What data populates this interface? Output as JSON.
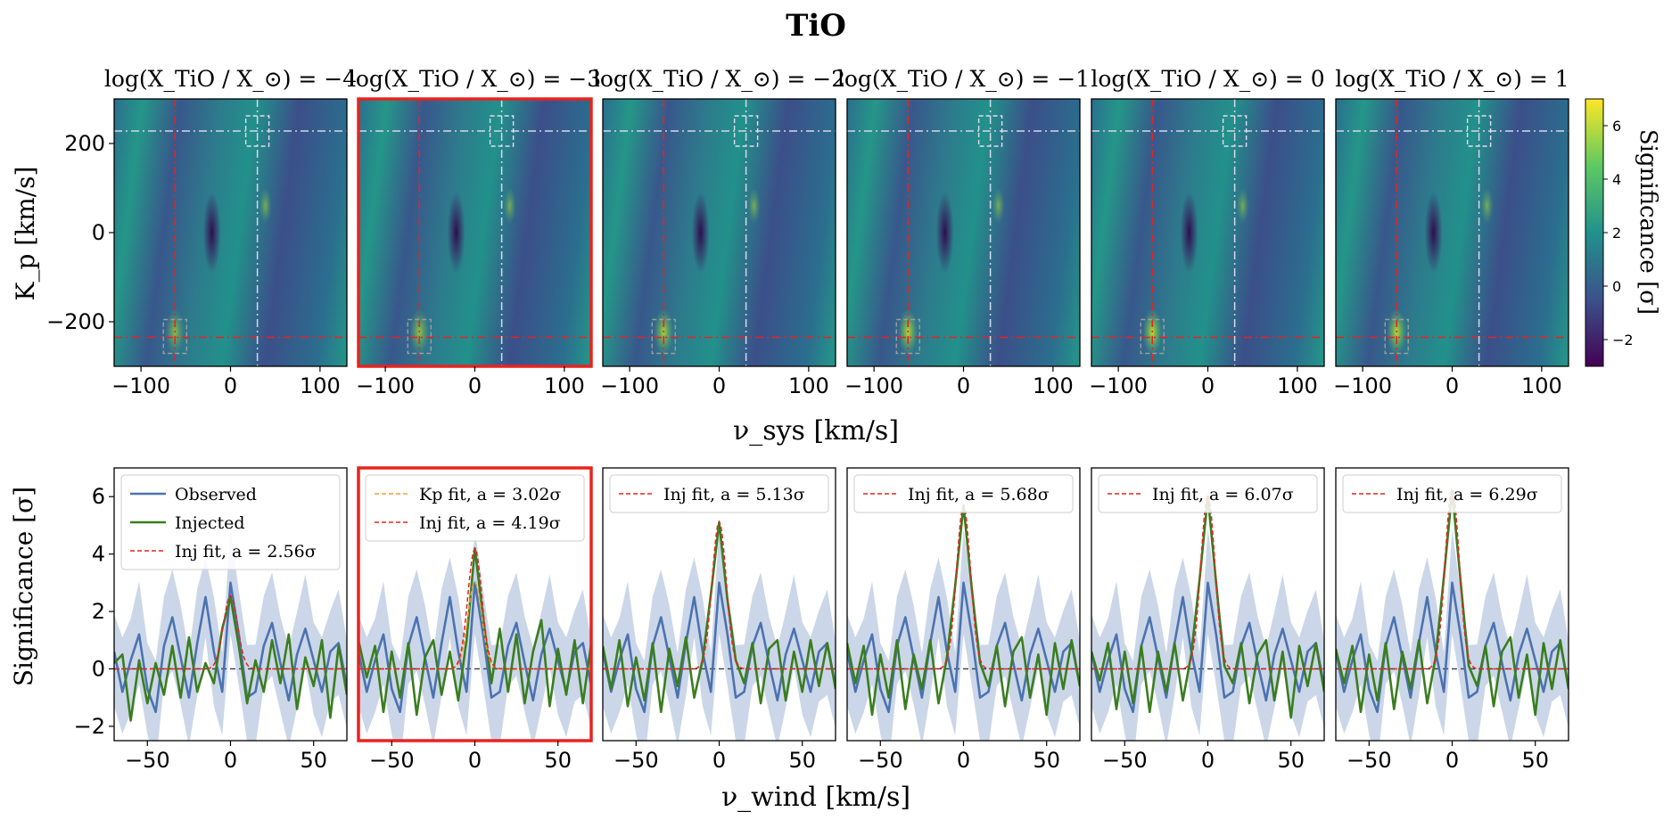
{
  "figure": {
    "title": "TiO",
    "top_ylabel": "K_p [km/s]",
    "top_xlabel": "ν_sys [km/s]",
    "bottom_ylabel": "Significance [σ]",
    "bottom_xlabel": "ν_wind [km/s]",
    "colorbar_label": "Significance [σ]",
    "colorbar_ticks": [
      "−2",
      "0",
      "2",
      "4",
      "6"
    ],
    "colormap": [
      "#440154",
      "#3b528b",
      "#21918c",
      "#5ec962",
      "#fde725"
    ],
    "highlight_color": "#e8231f",
    "highlight_panel_index": 1,
    "panel_titles": [
      "log(X_TiO / X_⊙) = −4",
      "log(X_TiO / X_⊙) = −3",
      "log(X_TiO / X_⊙) = −2",
      "log(X_TiO / X_⊙) = −1",
      "log(X_TiO / X_⊙) = 0",
      "log(X_TiO / X_⊙) = 1"
    ]
  },
  "chart_data": [
    {
      "type": "heatmap",
      "panel": "top-row",
      "xlim": [
        -130,
        130
      ],
      "ylim": [
        -300,
        300
      ],
      "xticks": [
        -100,
        0,
        100
      ],
      "yticks": [
        -200,
        0,
        200
      ],
      "color_range": [
        -3,
        7
      ],
      "red_crosshair": {
        "x": -62,
        "y": -235
      },
      "white_crosshair": {
        "x": 30,
        "y": 228
      },
      "peak_significance_at_red_crosshair": [
        2.8,
        3.6,
        4.8,
        5.6,
        6.0,
        6.3
      ]
    },
    {
      "type": "line",
      "panel": "bottom-row",
      "xlim": [
        -70,
        70
      ],
      "ylim": [
        -2.5,
        7
      ],
      "xticks": [
        -50,
        0,
        50
      ],
      "yticks": [
        -2,
        0,
        2,
        4,
        6
      ],
      "series_colors": {
        "observed": "#4c72b0",
        "injected": "#3a7d1f",
        "inj_fit": "#e8231f",
        "kp_fit": "#f0a030",
        "band": "#c5d3e6"
      },
      "legend_labels": {
        "observed": "Observed",
        "injected": "Injected"
      },
      "observed": {
        "x": [
          -70,
          -65,
          -60,
          -55,
          -50,
          -45,
          -40,
          -35,
          -30,
          -25,
          -20,
          -15,
          -10,
          -5,
          0,
          5,
          10,
          15,
          20,
          25,
          30,
          35,
          40,
          45,
          50,
          55,
          60,
          65,
          70
        ],
        "y": [
          0.6,
          -0.8,
          0.3,
          1.2,
          -0.7,
          -1.5,
          0.8,
          1.8,
          0.4,
          -1.0,
          0.9,
          2.5,
          0.6,
          -0.8,
          3.0,
          1.2,
          -1.0,
          -0.8,
          0.8,
          1.6,
          0.2,
          -1.1,
          0.5,
          1.4,
          0.3,
          -0.8,
          0.6,
          0.9,
          -0.6
        ]
      },
      "panels": [
        {
          "legend": [
            "Observed",
            "Injected",
            "Inj fit, a = 2.56σ"
          ],
          "amplitude": 2.56,
          "injected": {
            "x": [
              -70,
              -65,
              -60,
              -55,
              -50,
              -45,
              -40,
              -35,
              -30,
              -25,
              -20,
              -15,
              -10,
              -5,
              0,
              5,
              10,
              15,
              20,
              25,
              30,
              35,
              40,
              45,
              50,
              55,
              60,
              65,
              70
            ],
            "y": [
              0.2,
              0.5,
              -1.8,
              0.3,
              -1.2,
              0.2,
              -0.9,
              0.8,
              -1.0,
              1.1,
              -0.8,
              0.2,
              -0.5,
              1.4,
              2.5,
              0.8,
              -1.2,
              0.3,
              -0.8,
              1.0,
              -0.5,
              1.2,
              -1.4,
              0.4,
              -0.6,
              1.0,
              -1.7,
              0.8,
              -0.9
            ]
          }
        },
        {
          "legend": [
            "Kp fit, a = 3.02σ",
            "Inj fit, a = 4.19σ"
          ],
          "amplitude": 4.19,
          "kp_fit_amplitude": 3.02,
          "injected": {
            "x": [
              -70,
              -65,
              -60,
              -55,
              -50,
              -45,
              -40,
              -35,
              -30,
              -25,
              -20,
              -15,
              -10,
              -5,
              0,
              5,
              10,
              15,
              20,
              25,
              30,
              35,
              40,
              45,
              50,
              55,
              60,
              65,
              70
            ],
            "y": [
              1.0,
              -0.3,
              0.8,
              -1.5,
              0.6,
              -1.0,
              0.9,
              -1.6,
              0.4,
              1.0,
              -0.9,
              0.6,
              -1.1,
              1.0,
              4.2,
              1.8,
              -0.5,
              1.4,
              -0.8,
              1.2,
              -1.2,
              0.6,
              1.7,
              -1.3,
              0.7,
              -0.9,
              1.0,
              -1.2,
              0.9
            ]
          }
        },
        {
          "legend": [
            "Inj fit, a = 5.13σ"
          ],
          "amplitude": 5.13,
          "injected": {
            "x": [
              -70,
              -65,
              -60,
              -55,
              -50,
              -45,
              -40,
              -35,
              -30,
              -25,
              -20,
              -15,
              -10,
              -5,
              0,
              5,
              10,
              15,
              20,
              25,
              30,
              35,
              40,
              45,
              50,
              55,
              60,
              65,
              70
            ],
            "y": [
              0.8,
              -0.7,
              1.0,
              -1.3,
              0.4,
              -1.1,
              0.9,
              -1.5,
              0.7,
              -0.6,
              1.1,
              -1.0,
              0.3,
              2.6,
              5.1,
              2.4,
              0.3,
              -0.5,
              0.9,
              -1.2,
              0.7,
              1.0,
              -1.1,
              0.6,
              -0.8,
              1.0,
              -0.6,
              0.9,
              -0.7
            ]
          }
        },
        {
          "legend": [
            "Inj fit, a = 5.68σ"
          ],
          "amplitude": 5.68,
          "injected": {
            "x": [
              -70,
              -65,
              -60,
              -55,
              -50,
              -45,
              -40,
              -35,
              -30,
              -25,
              -20,
              -15,
              -10,
              -5,
              0,
              5,
              10,
              15,
              20,
              25,
              30,
              35,
              40,
              45,
              50,
              55,
              60,
              65,
              70
            ],
            "y": [
              0.9,
              -0.5,
              0.8,
              -1.6,
              0.5,
              -1.0,
              1.0,
              -1.4,
              0.5,
              -0.7,
              1.0,
              -1.2,
              0.4,
              2.9,
              5.7,
              2.8,
              0.2,
              -0.6,
              0.8,
              -1.3,
              0.6,
              1.1,
              -1.0,
              0.5,
              -1.6,
              0.9,
              -0.7,
              1.0,
              -0.6
            ]
          }
        },
        {
          "legend": [
            "Inj fit, a = 6.07σ"
          ],
          "amplitude": 6.07,
          "injected": {
            "x": [
              -70,
              -65,
              -60,
              -55,
              -50,
              -45,
              -40,
              -35,
              -30,
              -25,
              -20,
              -15,
              -10,
              -5,
              0,
              5,
              10,
              15,
              20,
              25,
              30,
              35,
              40,
              45,
              50,
              55,
              60,
              65,
              70
            ],
            "y": [
              0.6,
              -0.4,
              0.9,
              -1.4,
              0.6,
              -1.2,
              0.8,
              -1.5,
              0.6,
              -0.8,
              0.9,
              -1.1,
              0.5,
              3.1,
              6.0,
              3.0,
              0.1,
              -0.5,
              0.9,
              -1.2,
              0.5,
              1.0,
              -1.1,
              0.6,
              -1.7,
              0.8,
              -0.6,
              0.9,
              -0.8
            ]
          }
        },
        {
          "legend": [
            "Inj fit, a = 6.29σ"
          ],
          "amplitude": 6.29,
          "injected": {
            "x": [
              -70,
              -65,
              -60,
              -55,
              -50,
              -45,
              -40,
              -35,
              -30,
              -25,
              -20,
              -15,
              -10,
              -5,
              0,
              5,
              10,
              15,
              20,
              25,
              30,
              35,
              40,
              45,
              50,
              55,
              60,
              65,
              70
            ],
            "y": [
              0.7,
              -0.5,
              0.8,
              -1.5,
              0.5,
              -1.1,
              0.9,
              -1.4,
              0.6,
              -0.7,
              1.0,
              -1.2,
              0.4,
              3.2,
              6.2,
              3.1,
              0.1,
              -0.6,
              0.8,
              -1.3,
              0.6,
              1.1,
              -1.0,
              0.5,
              -1.6,
              0.9,
              -0.7,
              1.0,
              -0.7
            ]
          }
        }
      ]
    }
  ]
}
